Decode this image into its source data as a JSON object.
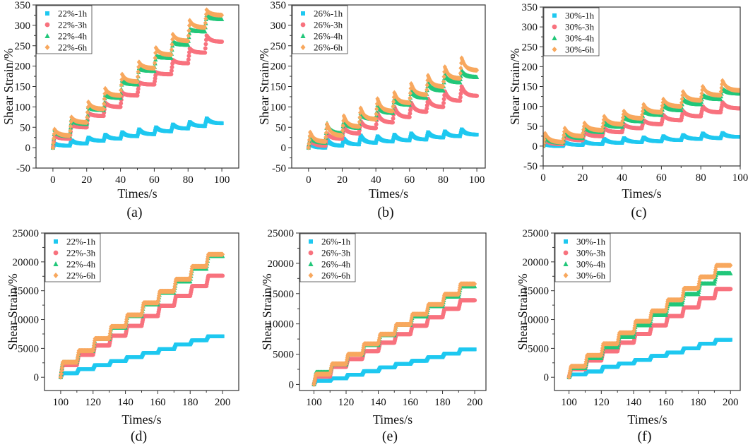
{
  "figure": {
    "panel_count": 6
  },
  "colors": {
    "1h": "#1ec8f0",
    "3h": "#f8727e",
    "4h": "#22c77a",
    "6h": "#f8a85e",
    "axis": "#333333"
  },
  "chart_data": [
    {
      "type": "scatter",
      "panel_label": "(a)",
      "xlabel": "Times/s",
      "ylabel": "Shear Strain/%",
      "xlim": [
        -10,
        110
      ],
      "ylim": [
        -50,
        350
      ],
      "xticks": [
        "0",
        "20",
        "40",
        "60",
        "80",
        "100"
      ],
      "yticks": [
        "-50",
        "0",
        "50",
        "100",
        "150",
        "200",
        "250",
        "300",
        "350"
      ],
      "legend": "top-left",
      "pattern": "creep-recovery",
      "t0": 0,
      "series": [
        {
          "name": "22%-1h",
          "key": "1h",
          "marker": "square",
          "peaks": [
            10,
            18,
            25,
            32,
            38,
            45,
            50,
            57,
            63,
            72
          ],
          "ends": [
            5,
            10,
            17,
            22,
            28,
            33,
            40,
            47,
            53,
            60
          ]
        },
        {
          "name": "22%-3h",
          "key": "3h",
          "marker": "circle",
          "peaks": [
            30,
            57,
            85,
            110,
            135,
            160,
            185,
            215,
            243,
            275
          ],
          "ends": [
            22,
            50,
            78,
            100,
            128,
            155,
            180,
            207,
            233,
            260
          ]
        },
        {
          "name": "22%-4h",
          "key": "4h",
          "marker": "triangle",
          "peaks": [
            45,
            70,
            100,
            130,
            165,
            195,
            225,
            260,
            290,
            325
          ],
          "ends": [
            28,
            58,
            92,
            122,
            155,
            188,
            220,
            252,
            285,
            315
          ]
        },
        {
          "name": "22%-6h",
          "key": "6h",
          "marker": "diamond",
          "peaks": [
            45,
            75,
            112,
            145,
            180,
            210,
            245,
            278,
            312,
            338
          ],
          "ends": [
            30,
            62,
            95,
            128,
            162,
            195,
            228,
            262,
            295,
            325
          ]
        }
      ]
    },
    {
      "type": "scatter",
      "panel_label": "(b)",
      "xlabel": "Times/s",
      "ylabel": "Shear Strain/%",
      "xlim": [
        -10,
        105
      ],
      "ylim": [
        -50,
        350
      ],
      "xticks": [
        "0",
        "20",
        "40",
        "60",
        "80",
        "100"
      ],
      "yticks": [
        "-50",
        "0",
        "50",
        "100",
        "150",
        "200",
        "250",
        "300",
        "350"
      ],
      "legend": "top-left",
      "pattern": "creep-recovery",
      "t0": 0,
      "series": [
        {
          "name": "26%-1h",
          "key": "1h",
          "marker": "square",
          "peaks": [
            10,
            20,
            22,
            30,
            28,
            32,
            35,
            38,
            40,
            45
          ],
          "ends": [
            0,
            5,
            8,
            12,
            15,
            18,
            20,
            25,
            28,
            32
          ]
        },
        {
          "name": "26%-3h",
          "key": "3h",
          "marker": "circle",
          "peaks": [
            20,
            35,
            50,
            65,
            85,
            100,
            110,
            120,
            138,
            150
          ],
          "ends": [
            5,
            22,
            35,
            48,
            62,
            75,
            88,
            100,
            115,
            127
          ]
        },
        {
          "name": "26%-4h",
          "key": "4h",
          "marker": "triangle",
          "peaks": [
            30,
            60,
            70,
            85,
            105,
            120,
            140,
            160,
            180,
            190
          ],
          "ends": [
            12,
            35,
            48,
            70,
            85,
            105,
            122,
            140,
            160,
            173
          ]
        },
        {
          "name": "26%-6h",
          "key": "6h",
          "marker": "diamond",
          "peaks": [
            38,
            58,
            78,
            97,
            120,
            135,
            157,
            177,
            198,
            220
          ],
          "ends": [
            15,
            30,
            52,
            70,
            90,
            110,
            130,
            150,
            170,
            190
          ]
        }
      ]
    },
    {
      "type": "scatter",
      "panel_label": "(c)",
      "xlabel": "Times/s",
      "ylabel": "Shear Strain/%",
      "xlim": [
        0,
        100
      ],
      "ylim": [
        -50,
        350
      ],
      "xticks": [
        "0",
        "20",
        "40",
        "60",
        "80",
        "100"
      ],
      "yticks": [
        "-50",
        "0",
        "50",
        "100",
        "150",
        "200",
        "250",
        "300",
        "350"
      ],
      "legend": "top-left",
      "pattern": "creep-recovery",
      "t0": 0,
      "series": [
        {
          "name": "30%-1h",
          "key": "1h",
          "marker": "square",
          "peaks": [
            5,
            10,
            12,
            18,
            20,
            22,
            25,
            28,
            32,
            33
          ],
          "ends": [
            0,
            3,
            5,
            8,
            10,
            12,
            15,
            18,
            20,
            23
          ]
        },
        {
          "name": "30%-3h",
          "key": "3h",
          "marker": "circle",
          "peaks": [
            15,
            25,
            35,
            45,
            55,
            65,
            78,
            88,
            100,
            110
          ],
          "ends": [
            5,
            15,
            25,
            35,
            45,
            55,
            65,
            75,
            85,
            95
          ]
        },
        {
          "name": "30%-4h",
          "key": "4h",
          "marker": "triangle",
          "peaks": [
            25,
            40,
            50,
            60,
            75,
            90,
            105,
            120,
            130,
            145
          ],
          "ends": [
            8,
            20,
            35,
            48,
            62,
            78,
            90,
            105,
            118,
            132
          ]
        },
        {
          "name": "30%-6h",
          "key": "6h",
          "marker": "diamond",
          "peaks": [
            32,
            45,
            58,
            75,
            88,
            105,
            118,
            137,
            150,
            165
          ],
          "ends": [
            10,
            25,
            40,
            55,
            70,
            85,
            100,
            115,
            128,
            140
          ]
        }
      ]
    },
    {
      "type": "scatter",
      "panel_label": "(d)",
      "xlabel": "Times/s",
      "ylabel": "Shear Strain/%",
      "xlim": [
        90,
        210
      ],
      "ylim": [
        -2300,
        25000
      ],
      "xticks": [
        "100",
        "120",
        "140",
        "160",
        "180",
        "200"
      ],
      "yticks": [
        "0",
        "5000",
        "10000",
        "15000",
        "20000",
        "25000"
      ],
      "legend": "top-left",
      "pattern": "step",
      "t0": 100,
      "series": [
        {
          "name": "22%-1h",
          "key": "1h",
          "marker": "square",
          "plateaus": [
            700,
            1400,
            2100,
            2800,
            3500,
            4200,
            4900,
            5700,
            6400,
            7100
          ]
        },
        {
          "name": "22%-3h",
          "key": "3h",
          "marker": "circle",
          "plateaus": [
            2100,
            3900,
            5500,
            7200,
            8900,
            10600,
            12400,
            14100,
            15800,
            17600
          ]
        },
        {
          "name": "22%-4h",
          "key": "4h",
          "marker": "triangle",
          "plateaus": [
            2600,
            4500,
            6600,
            8600,
            10600,
            12600,
            14600,
            16600,
            18800,
            21000
          ]
        },
        {
          "name": "22%-6h",
          "key": "6h",
          "marker": "diamond",
          "plateaus": [
            2600,
            4600,
            6700,
            8800,
            10800,
            12900,
            14900,
            17000,
            19200,
            21300
          ]
        }
      ]
    },
    {
      "type": "scatter",
      "panel_label": "(e)",
      "xlabel": "Times/s",
      "ylabel": "Shear Strain/%",
      "xlim": [
        91,
        207
      ],
      "ylim": [
        -1000,
        25000
      ],
      "xticks": [
        "100",
        "120",
        "140",
        "160",
        "180",
        "200"
      ],
      "yticks": [
        "0",
        "5000",
        "10000",
        "15000",
        "20000",
        "25000"
      ],
      "legend": "top-left",
      "pattern": "step",
      "t0": 100,
      "series": [
        {
          "name": "26%-1h",
          "key": "1h",
          "marker": "square",
          "plateaus": [
            600,
            1000,
            1600,
            2200,
            2800,
            3400,
            3900,
            4500,
            5100,
            5800
          ]
        },
        {
          "name": "26%-3h",
          "key": "3h",
          "marker": "circle",
          "plateaus": [
            1300,
            2900,
            4200,
            5500,
            6900,
            8300,
            9700,
            11100,
            12500,
            13900
          ]
        },
        {
          "name": "26%-4h",
          "key": "4h",
          "marker": "triangle",
          "plateaus": [
            2000,
            3300,
            4900,
            6500,
            8100,
            9800,
            11200,
            12900,
            14500,
            16200
          ]
        },
        {
          "name": "26%-6h",
          "key": "6h",
          "marker": "diamond",
          "plateaus": [
            1700,
            3400,
            5000,
            6700,
            8300,
            9900,
            11600,
            13200,
            14900,
            16600
          ]
        }
      ]
    },
    {
      "type": "scatter",
      "panel_label": "(f)",
      "xlabel": "Times/s",
      "ylabel": "Shear Strain/%",
      "xlim": [
        91,
        206
      ],
      "ylim": [
        -2300,
        25000
      ],
      "xticks": [
        "100",
        "120",
        "140",
        "160",
        "180",
        "200"
      ],
      "yticks": [
        "0",
        "5000",
        "10000",
        "15000",
        "20000",
        "25000"
      ],
      "legend": "top-left",
      "pattern": "step",
      "t0": 100,
      "series": [
        {
          "name": "30%-1h",
          "key": "1h",
          "marker": "square",
          "plateaus": [
            500,
            1000,
            1800,
            2400,
            3000,
            3700,
            4300,
            5000,
            5800,
            6500
          ]
        },
        {
          "name": "30%-3h",
          "key": "3h",
          "marker": "circle",
          "plateaus": [
            1400,
            2900,
            4500,
            6000,
            7500,
            9000,
            10600,
            12100,
            13700,
            15300
          ]
        },
        {
          "name": "30%-4h",
          "key": "4h",
          "marker": "triangle",
          "plateaus": [
            1600,
            3300,
            5200,
            7000,
            9000,
            10800,
            12600,
            14400,
            16200,
            18000
          ]
        },
        {
          "name": "30%-6h",
          "key": "6h",
          "marker": "diamond",
          "plateaus": [
            1900,
            3800,
            5800,
            7700,
            9700,
            11500,
            13400,
            15400,
            17400,
            19400
          ]
        }
      ]
    }
  ]
}
